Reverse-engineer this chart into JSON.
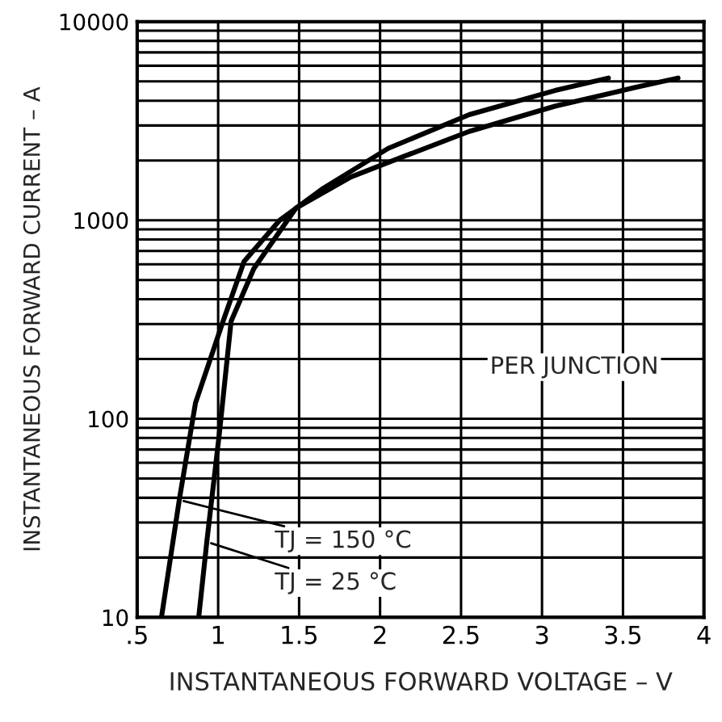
{
  "chart_data": {
    "type": "line",
    "xlabel": "INSTANTANEOUS FORWARD VOLTAGE – V",
    "ylabel": "INSTANTANEOUS FORWARD CURRENT – A",
    "log": "y",
    "grid": true,
    "legend": false,
    "marker": "none",
    "line_style": "solid",
    "xlim": [
      0.5,
      4
    ],
    "ylim": [
      10,
      10000
    ],
    "xticks": [
      {
        "value": 0.5,
        "label": ".5"
      },
      1,
      1.5,
      2,
      2.5,
      3,
      3.5,
      4
    ],
    "yticks": [
      10,
      100,
      1000,
      10000
    ],
    "series": [
      {
        "color": "#000000",
        "x": [
          0.65,
          0.76,
          0.86,
          1.03,
          1.16,
          1.38,
          1.65,
          2.05,
          2.55,
          3.08,
          3.41
        ],
        "values": [
          10,
          39,
          120,
          309,
          620,
          1000,
          1450,
          2300,
          3400,
          4500,
          5200
        ]
      },
      {
        "color": "#000000",
        "x": [
          0.88,
          0.93,
          1.01,
          1.08,
          1.22,
          1.48,
          1.82,
          2.15,
          2.55,
          3.08,
          3.57,
          3.84
        ],
        "values": [
          10,
          24,
          88,
          310,
          570,
          1150,
          1650,
          2100,
          2800,
          3750,
          4650,
          5200
        ]
      }
    ],
    "annotations": [
      "PER JUNCTION",
      {
        "text": "TJ = 150 °C",
        "x": 0.76,
        "y": 39
      },
      {
        "text": "TJ = 25 °C",
        "x": 0.93,
        "y": 24
      }
    ]
  }
}
